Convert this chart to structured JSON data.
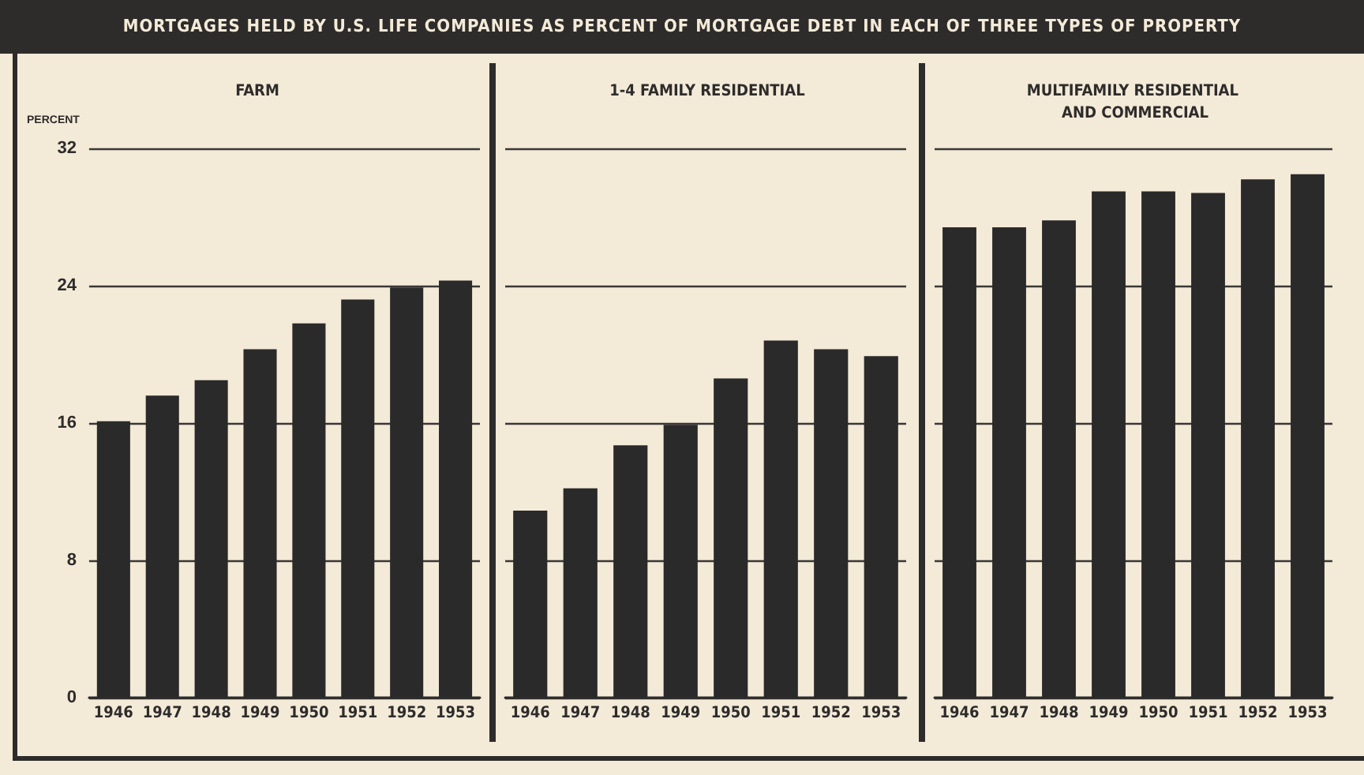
{
  "chart_data": [
    {
      "type": "bar",
      "title": "FARM",
      "ylabel": "PERCENT",
      "annotations": [
        "MORTGAGES HELD BY U.S. LIFE COMPANIES AS PERCENT OF MORTGAGE DEBT IN EACH OF THREE TYPES OF PROPERTY"
      ],
      "categories": [
        "1946",
        "1947",
        "1948",
        "1949",
        "1950",
        "1951",
        "1952",
        "1953"
      ],
      "values": [
        16.1,
        17.6,
        18.5,
        20.3,
        21.8,
        23.2,
        23.9,
        24.3
      ],
      "color": "#2b2a2a",
      "ylim": [
        0,
        32
      ],
      "yticks": [
        0,
        8,
        16,
        24,
        32
      ],
      "grid": "y"
    },
    {
      "type": "bar",
      "title": "1-4 FAMILY RESIDENTIAL",
      "categories": [
        "1946",
        "1947",
        "1948",
        "1949",
        "1950",
        "1951",
        "1952",
        "1953"
      ],
      "values": [
        10.9,
        12.2,
        14.7,
        15.9,
        18.6,
        20.8,
        20.3,
        19.9
      ],
      "color": "#2b2a2a",
      "ylim": [
        0,
        32
      ],
      "yticks": [
        0,
        8,
        16,
        24,
        32
      ],
      "grid": "y",
      "tick_labels": "x"
    },
    {
      "type": "bar",
      "title": "MULTIFAMILY RESIDENTIAL AND COMMERCIAL",
      "categories": [
        "1946",
        "1947",
        "1948",
        "1949",
        "1950",
        "1951",
        "1952",
        "1953"
      ],
      "values": [
        27.4,
        27.4,
        27.8,
        29.5,
        29.5,
        29.4,
        30.2,
        30.5
      ],
      "color": "#2b2a2a",
      "ylim": [
        0,
        32
      ],
      "yticks": [
        0,
        8,
        16,
        24,
        32
      ],
      "grid": "y",
      "tick_labels": "x"
    }
  ]
}
